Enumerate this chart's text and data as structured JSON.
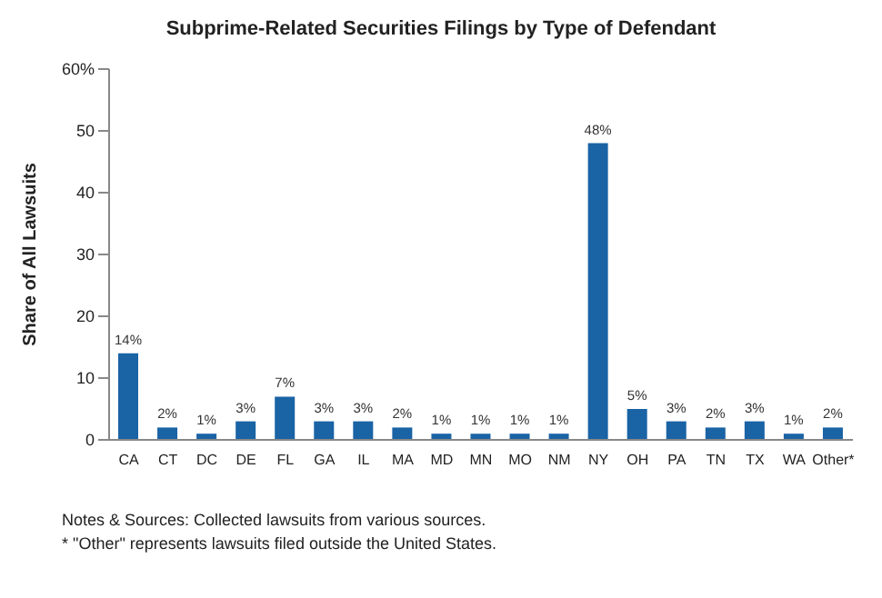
{
  "chart_data": {
    "type": "bar",
    "title": "Subprime-Related Securities Filings by Type of Defendant",
    "ylabel": "Share of All Lawsuits",
    "categories": [
      "CA",
      "CT",
      "DC",
      "DE",
      "FL",
      "GA",
      "IL",
      "MA",
      "MD",
      "MN",
      "MO",
      "NM",
      "NY",
      "OH",
      "PA",
      "TN",
      "TX",
      "WA",
      "Other*"
    ],
    "values": [
      14,
      2,
      1,
      3,
      7,
      3,
      3,
      2,
      1,
      1,
      1,
      1,
      48,
      5,
      3,
      2,
      3,
      1,
      2
    ],
    "value_labels": [
      "14%",
      "2%",
      "1%",
      "3%",
      "7%",
      "3%",
      "3%",
      "2%",
      "1%",
      "1%",
      "1%",
      "1%",
      "48%",
      "5%",
      "3%",
      "2%",
      "3%",
      "1%",
      "2%"
    ],
    "color": "#1a63a5",
    "ylim": [
      0,
      60
    ],
    "yticks": [
      0,
      10,
      20,
      30,
      40,
      50,
      {
        "value": 60,
        "label": "60%"
      }
    ],
    "grid": false,
    "annotations": [
      "Notes & Sources: Collected lawsuits from various sources.",
      "* \"Other\" represents lawsuits filed outside the United States."
    ]
  }
}
